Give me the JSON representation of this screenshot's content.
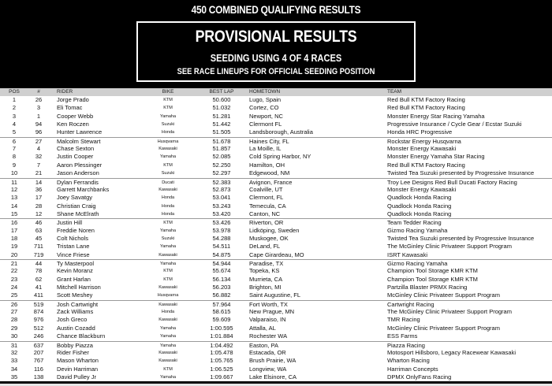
{
  "header": {
    "title": "450 COMBINED QUALIFYING RESULTS",
    "box_title": "PROVISIONAL RESULTS",
    "seeding": "SEEDING USING 4 OF 4 RACES",
    "note": "SEE RACE LINEUPS FOR OFFICIAL SEEDING POSITION"
  },
  "table": {
    "columns": {
      "pos": "POS",
      "num": "#",
      "rider": "RIDER",
      "bike": "BIKE",
      "lap": "BEST LAP",
      "home": "HOMETOWN",
      "team": "TEAM"
    },
    "rows": [
      [
        "1",
        "26",
        "Jorge Prado",
        "KTM",
        "50.600",
        "Lugo, Spain",
        "Red Bull KTM Factory Racing"
      ],
      [
        "2",
        "3",
        "Eli Tomac",
        "KTM",
        "51.032",
        "Cortez, CO",
        "Red Bull KTM Factory Racing"
      ],
      [
        "3",
        "1",
        "Cooper Webb",
        "Yamaha",
        "51.281",
        "Newport, NC",
        "Monster Energy Star Racing Yamaha"
      ],
      [
        "4",
        "94",
        "Ken Roczen",
        "Suzuki",
        "51.442",
        "Clermont FL",
        "Progressive Insurance / Cycle Gear / Ecstar Suzuki"
      ],
      [
        "5",
        "96",
        "Hunter Lawrence",
        "Honda",
        "51.505",
        "Landsborough, Australia",
        "Honda HRC Progressive"
      ],
      [
        "6",
        "27",
        "Malcolm Stewart",
        "Husqvarna",
        "51.678",
        "Haines City, FL",
        "Rockstar Energy Husqvarna"
      ],
      [
        "7",
        "4",
        "Chase Sexton",
        "Kawasaki",
        "51.857",
        "La Moille, IL",
        "Monster Energy Kawasaki"
      ],
      [
        "8",
        "32",
        "Justin Cooper",
        "Yamaha",
        "52.085",
        "Cold Spring Harbor, NY",
        "Monster Energy Yamaha Star Racing"
      ],
      [
        "9",
        "7",
        "Aaron Plessinger",
        "KTM",
        "52.250",
        "Hamilton, OH",
        "Red Bull KTM Factory Racing"
      ],
      [
        "10",
        "21",
        "Jason Anderson",
        "Suzuki",
        "52.297",
        "Edgewood, NM",
        "Twisted Tea Suzuki presented by Progressive Insurance"
      ],
      [
        "11",
        "14",
        "Dylan Ferrandis",
        "Ducati",
        "52.383",
        "Avignon, France",
        "Troy Lee Designs Red Bull Ducati Factory Racing"
      ],
      [
        "12",
        "36",
        "Garrett Marchbanks",
        "Kawasaki",
        "52.873",
        "Coalville, UT",
        "Monster Energy Kawasaki"
      ],
      [
        "13",
        "17",
        "Joey Savatgy",
        "Honda",
        "53.041",
        "Clermont, FL",
        "Quadlock Honda Racing"
      ],
      [
        "14",
        "28",
        "Christian Craig",
        "Honda",
        "53.243",
        "Temecula, CA",
        "Quadlock Honda Racing"
      ],
      [
        "15",
        "12",
        "Shane McElrath",
        "Honda",
        "53.420",
        "Canton, NC",
        "Quadlock Honda Racing"
      ],
      [
        "16",
        "46",
        "Justin Hill",
        "KTM",
        "53.426",
        "Riverton, OR",
        "Team Tedder Racing"
      ],
      [
        "17",
        "63",
        "Freddie Noren",
        "Yamaha",
        "53.978",
        "Lidköping, Sweden",
        "Gizmo Racing Yamaha"
      ],
      [
        "18",
        "45",
        "Colt Nichols",
        "Suzuki",
        "54.288",
        "Muskogee, OK",
        "Twisted Tea Suzuki presented by Progressive Insurance"
      ],
      [
        "19",
        "711",
        "Tristan Lane",
        "Yamaha",
        "54.511",
        "DeLand, FL",
        "The McGinley Clinic Privateer Support Program"
      ],
      [
        "20",
        "719",
        "Vince Friese",
        "Kawasaki",
        "54.875",
        "Cape Girardeau, MO",
        "ISRT Kawasaki"
      ],
      [
        "21",
        "44",
        "Ty Masterpool",
        "Yamaha",
        "54.944",
        "Paradise, TX",
        "Gizmo Racing Yamaha"
      ],
      [
        "22",
        "78",
        "Kevin Moranz",
        "KTM",
        "55.674",
        "Topeka, KS",
        "Champion Tool Storage KMR KTM"
      ],
      [
        "23",
        "62",
        "Grant Harlan",
        "KTM",
        "56.134",
        "Murrieta, CA",
        "Champion Tool Storage KMR KTM"
      ],
      [
        "24",
        "41",
        "Mitchell Harrison",
        "Kawasaki",
        "56.203",
        "Brighton, MI",
        "Partzilla Blaster PRMX Racing"
      ],
      [
        "25",
        "411",
        "Scott Meshey",
        "Husqvarna",
        "56.882",
        "Saint Augustine, FL",
        "McGinley Clinic Privateer Support Program"
      ],
      [
        "26",
        "519",
        "Josh Cartwright",
        "Kawasaki",
        "57.964",
        "Fort Worth, TX",
        "Cartwright Racing"
      ],
      [
        "27",
        "874",
        "Zack Williams",
        "Honda",
        "58.615",
        "New Prague, MN",
        "The McGinley Clinic Privateer Support Program"
      ],
      [
        "28",
        "976",
        "Josh Greco",
        "Kawasaki",
        "59.609",
        "Valparaiso, IN",
        "TMR Racing"
      ],
      [
        "29",
        "512",
        "Austin Cozadd",
        "Yamaha",
        "1:00.595",
        "Attalla, AL",
        "McGinley Clinic Privateer Support Program"
      ],
      [
        "30",
        "246",
        "Chance Blackburn",
        "Yamaha",
        "1:01.884",
        "Rochester WA",
        "ESS Farms"
      ],
      [
        "31",
        "637",
        "Bobby Piazza",
        "Yamaha",
        "1:04.492",
        "Easton, PA",
        "Piazza Racing"
      ],
      [
        "32",
        "207",
        "Rider Fisher",
        "Kawasaki",
        "1:05.478",
        "Estacada, OR",
        "Motosport Hillsboro, Legacy Racewear Kawasaki"
      ],
      [
        "33",
        "767",
        "Mason Wharton",
        "Kawasaki",
        "1:05.765",
        "Brush Prairie, WA",
        "Wharton Racing"
      ],
      [
        "34",
        "116",
        "Devin Harriman",
        "KTM",
        "1:06.525",
        "Longview, WA",
        "Harriman Concepts"
      ],
      [
        "35",
        "138",
        "David Pulley Jr",
        "Yamaha",
        "1:09.667",
        "Lake Elsinore, CA",
        "DPMX OnlyFans Racing"
      ]
    ]
  }
}
